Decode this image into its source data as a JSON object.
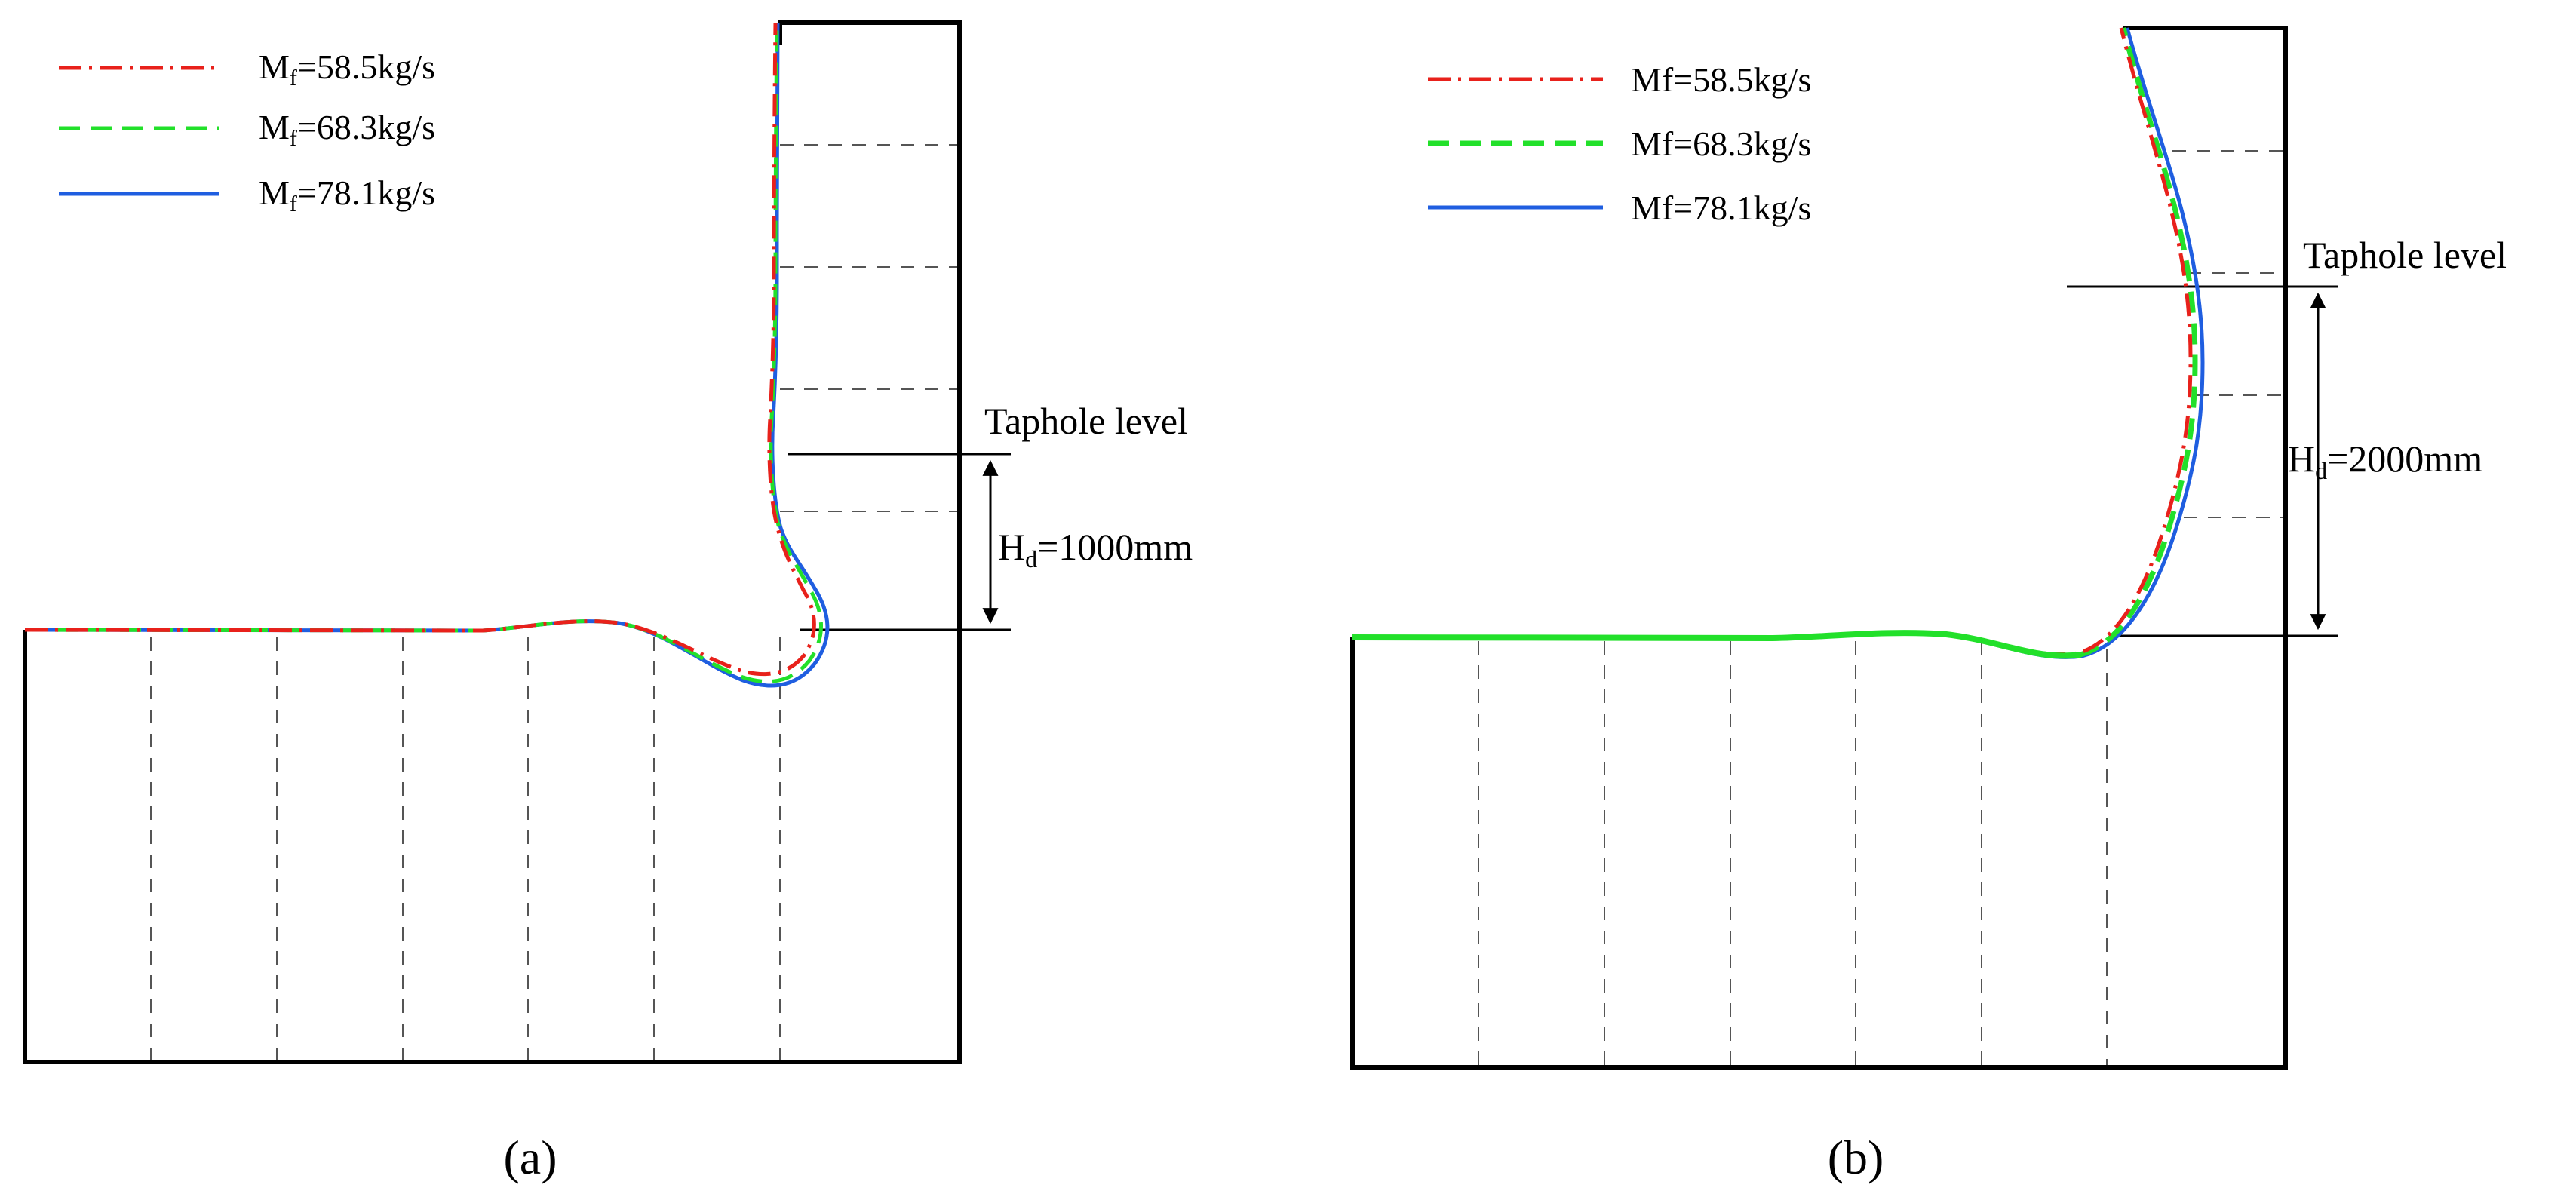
{
  "colors": {
    "series_1": "#e8211b",
    "series_2": "#22e02a",
    "series_3": "#1f5ee0",
    "frame": "#000000",
    "gridline": "#555555"
  },
  "panel_a": {
    "legend": [
      {
        "name_main": "M",
        "name_sub": "f",
        "value": "=58.5kg/s",
        "style": "dash-dot"
      },
      {
        "name_main": "M",
        "name_sub": "f",
        "value": "=68.3kg/s",
        "style": "dashed"
      },
      {
        "name_main": "M",
        "name_sub": "f",
        "value": "=78.1kg/s",
        "style": "solid"
      }
    ],
    "taphole_label": "Taphole level",
    "height_main": "H",
    "height_sub": "d",
    "height_value": "=1000mm",
    "caption": "(a)"
  },
  "panel_b": {
    "legend": [
      {
        "label": "Mf=58.5kg/s",
        "style": "dash-dot"
      },
      {
        "label": "Mf=68.3kg/s",
        "style": "dashed"
      },
      {
        "label": "Mf=78.1kg/s",
        "style": "solid"
      }
    ],
    "taphole_label": "Taphole level",
    "height_main": "H",
    "height_sub": "d",
    "height_value": "=2000mm",
    "caption": "(b)"
  }
}
